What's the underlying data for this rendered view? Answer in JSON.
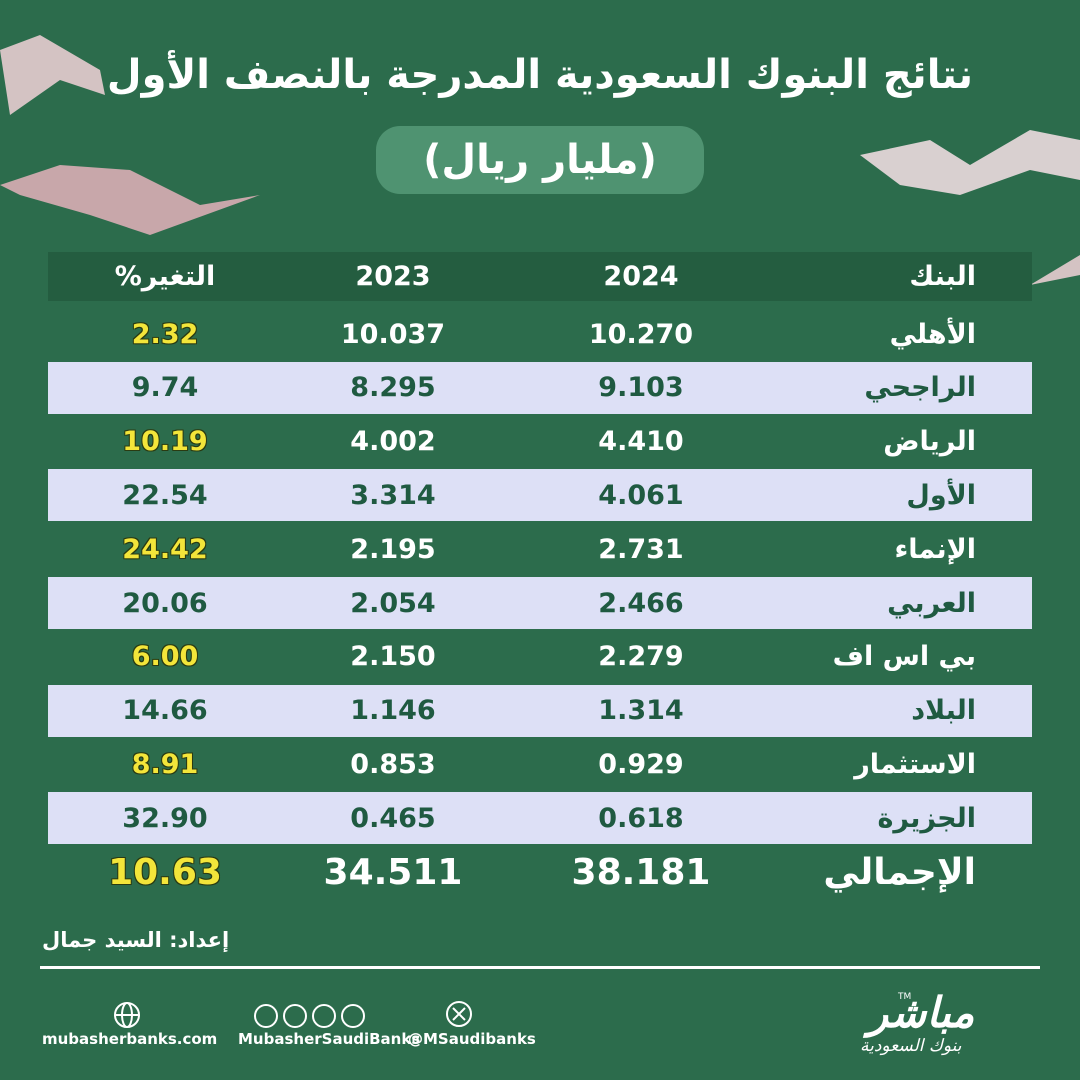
{
  "header": {
    "title": "نتائج البنوك السعودية المدرجة بالنصف الأول",
    "subtitle": "(مليار ريال)"
  },
  "table": {
    "columns": [
      "البنك",
      "2024",
      "2023",
      "التغير%"
    ],
    "rows": [
      [
        "الأهلي",
        "10.270",
        "10.037",
        "2.32"
      ],
      [
        "الراجحي",
        "9.103",
        "8.295",
        "9.74"
      ],
      [
        "الرياض",
        "4.410",
        "4.002",
        "10.19"
      ],
      [
        "الأول",
        "4.061",
        "3.314",
        "22.54"
      ],
      [
        "الإنماء",
        "2.731",
        "2.195",
        "24.42"
      ],
      [
        "العربي",
        "2.466",
        "2.054",
        "20.06"
      ],
      [
        "بي اس اف",
        "2.279",
        "2.150",
        "6.00"
      ],
      [
        "البلاد",
        "1.314",
        "1.146",
        "14.66"
      ],
      [
        "الاستثمار",
        "0.929",
        "0.853",
        "8.91"
      ],
      [
        "الجزيرة",
        "0.618",
        "0.465",
        "32.90"
      ]
    ],
    "total": [
      "الإجمالي",
      "38.181",
      "34.511",
      "10.63"
    ]
  },
  "credit": "إعداد: السيد جمال",
  "footer": {
    "website": "mubasherbanks.com",
    "social": "MubasherSaudiBanks",
    "handle": "@MSaudibanks"
  },
  "logo": {
    "name": "مباشر",
    "tm": "TM",
    "sub": "بنوك السعودية"
  }
}
